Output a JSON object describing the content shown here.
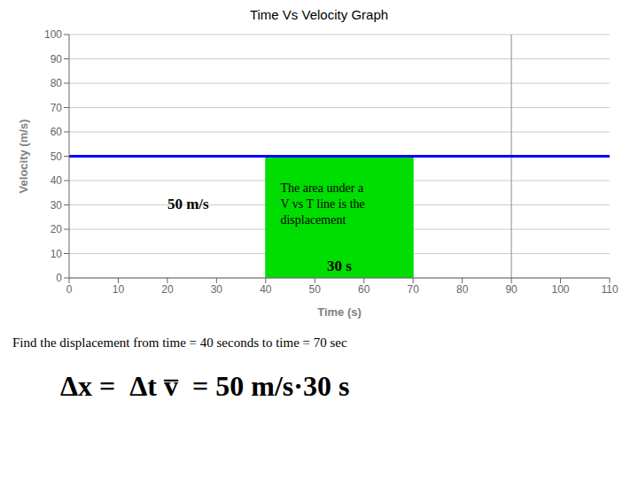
{
  "chart_data": {
    "type": "line",
    "title": "Time Vs Velocity Graph",
    "xlabel": "Time (s)",
    "ylabel": "Velocity (m/s)",
    "xlim": [
      0,
      110
    ],
    "ylim": [
      0,
      100
    ],
    "xticks": [
      0,
      10,
      20,
      30,
      40,
      50,
      60,
      70,
      80,
      90,
      100,
      110
    ],
    "yticks": [
      0,
      10,
      20,
      30,
      40,
      50,
      60,
      70,
      80,
      90,
      100
    ],
    "grid": "y",
    "x": [
      0,
      110
    ],
    "values": [
      50,
      50
    ],
    "color": "#0000FF",
    "area": {
      "x_start": 40,
      "x_end": 70,
      "value": 50,
      "color": "#00DD00"
    },
    "vlines": [
      {
        "x": 90,
        "color": "#888888"
      }
    ],
    "annotations": [
      {
        "text": "50 m/s",
        "x": 20,
        "y": 30
      },
      {
        "text": "The area under a\nV vs T line is the\ndisplacement",
        "x": 43,
        "y": 30
      },
      {
        "text": "30 s",
        "x": 55
      }
    ],
    "caption": [
      "Find the displacement from time = 40 seconds to time = 70 sec",
      "Δx =  Δt v̅  = 50 m/s·30 s"
    ]
  }
}
